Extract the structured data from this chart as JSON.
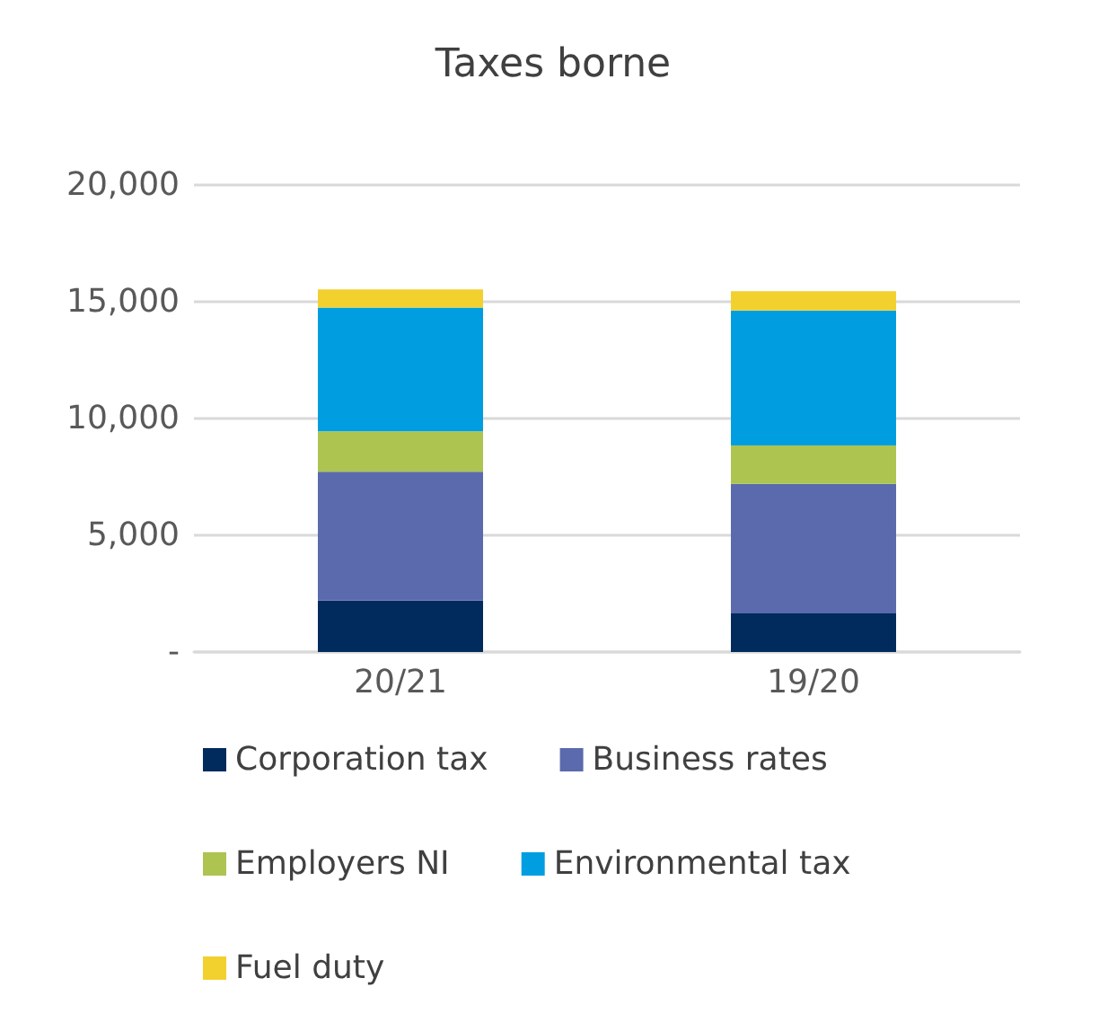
{
  "chart_data": {
    "type": "bar",
    "title": "Taxes borne",
    "categories": [
      "20/21",
      "19/20"
    ],
    "stacked": true,
    "series": [
      {
        "name": "Corporation tax",
        "color": "#002b5c",
        "values": [
          2200,
          1650
        ]
      },
      {
        "name": "Business rates",
        "color": "#5b6aad",
        "values": [
          5525,
          5550
        ]
      },
      {
        "name": "Employers NI",
        "color": "#adc451",
        "values": [
          1725,
          1650
        ]
      },
      {
        "name": "Environmental tax",
        "color": "#009ee0",
        "values": [
          5300,
          5775
        ]
      },
      {
        "name": "Fuel duty",
        "color": "#f2d12e",
        "values": [
          775,
          825
        ]
      }
    ],
    "ylim": [
      0,
      20000
    ],
    "yticks": [
      {
        "value": 0,
        "label": "-"
      },
      {
        "value": 5000,
        "label": "5,000"
      },
      {
        "value": 10000,
        "label": "10,000"
      },
      {
        "value": 15000,
        "label": "15,000"
      },
      {
        "value": 20000,
        "label": "20,000"
      }
    ],
    "grid": "y",
    "legend": "bottom"
  }
}
